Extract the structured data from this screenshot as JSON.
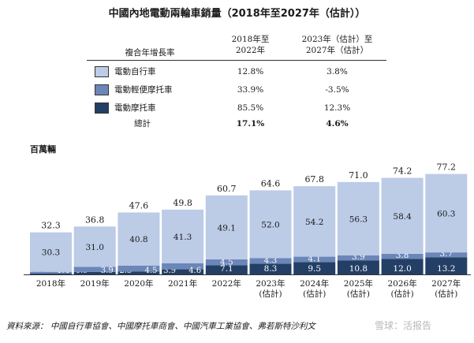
{
  "title": "中國內地電動兩輪車銷量（2018年至2027年（估計））",
  "table": {
    "row_header": "複合年增長率",
    "col1_header_line1": "2018年至",
    "col1_header_line2": "2022年",
    "col2_header_line1": "2023年（估計）至",
    "col2_header_line2": "2027年（估計）",
    "rows": [
      {
        "label": "電動自行車",
        "v1": "12.8%",
        "v2": "3.8%",
        "color": "#bccbe6"
      },
      {
        "label": "電動輕便摩托車",
        "v1": "33.9%",
        "v2": "-3.5%",
        "color": "#6b86b8"
      },
      {
        "label": "電動摩托車",
        "v1": "85.5%",
        "v2": "12.3%",
        "color": "#243f66"
      },
      {
        "label": "總計",
        "v1": "17.1%",
        "v2": "4.6%"
      }
    ]
  },
  "unit": "百萬輛",
  "chart_data": {
    "type": "bar",
    "stacked": true,
    "categories": [
      [
        "2018年"
      ],
      [
        "2019年"
      ],
      [
        "2020年"
      ],
      [
        "2021年"
      ],
      [
        "2022年"
      ],
      [
        "2023年",
        "(估計)"
      ],
      [
        "2024年",
        "(估計)"
      ],
      [
        "2025年",
        "(估計)"
      ],
      [
        "2026年",
        "(估計)"
      ],
      [
        "2027年",
        "(估計)"
      ]
    ],
    "series": [
      {
        "name": "電動摩托車",
        "values": [
          0.6,
          1.9,
          2.3,
          3.9,
          7.1,
          8.3,
          9.5,
          10.8,
          12.0,
          13.2
        ],
        "color": "#243f66"
      },
      {
        "name": "電動輕便摩托車",
        "values": [
          1.4,
          3.9,
          4.5,
          4.6,
          4.5,
          4.3,
          4.1,
          3.9,
          3.8,
          3.7
        ],
        "color": "#6b86b8"
      },
      {
        "name": "電動自行車",
        "values": [
          30.3,
          31.0,
          40.8,
          41.3,
          49.1,
          52.0,
          54.2,
          56.3,
          58.4,
          60.3
        ],
        "color": "#bccbe6"
      }
    ],
    "totals": [
      32.3,
      36.8,
      47.6,
      49.8,
      60.7,
      64.6,
      67.8,
      71.0,
      74.2,
      77.2
    ],
    "title": "",
    "xlabel": "",
    "ylabel": "百萬輛"
  },
  "source": "資料來源： 中國自行車協會、中國摩托車商會、中國汽車工業協會、弗若斯特沙利文",
  "watermark": "雪球：活报告"
}
